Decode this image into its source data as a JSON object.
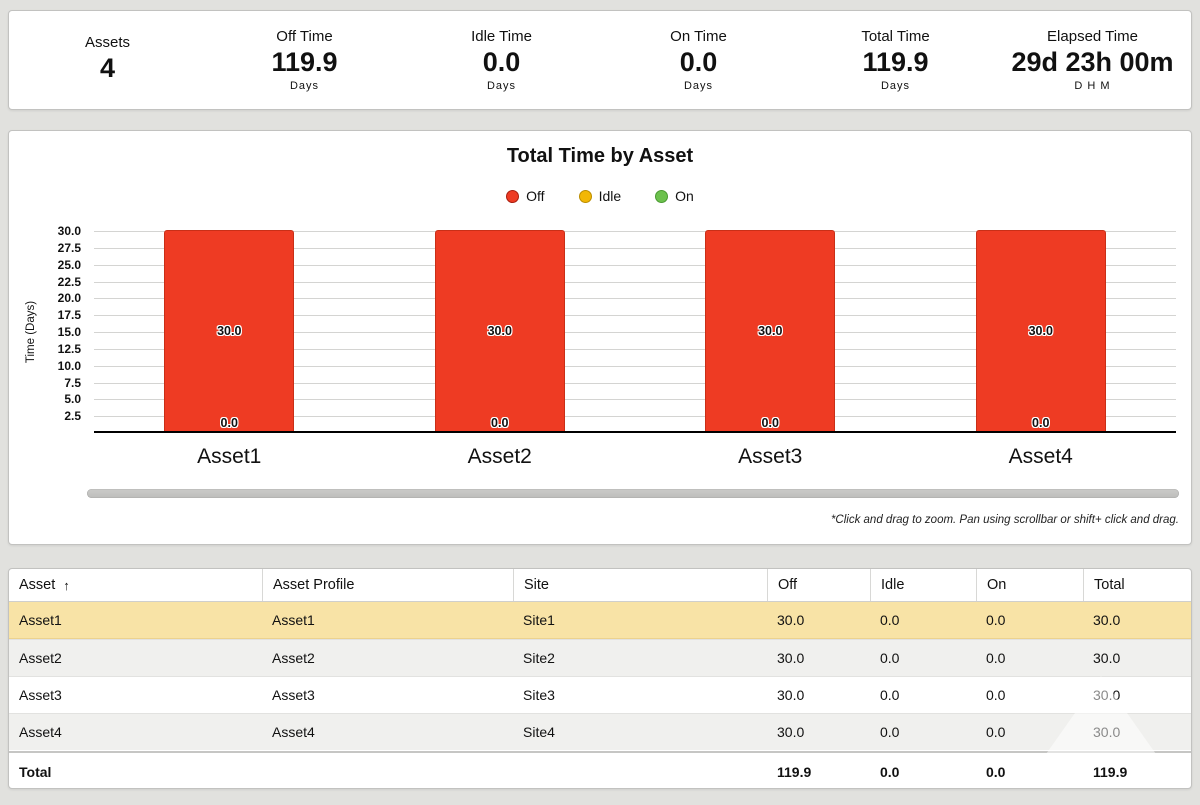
{
  "stats": [
    {
      "label": "Assets",
      "value": "4",
      "unit": ""
    },
    {
      "label": "Off Time",
      "value": "119.9",
      "unit": "Days"
    },
    {
      "label": "Idle Time",
      "value": "0.0",
      "unit": "Days"
    },
    {
      "label": "On Time",
      "value": "0.0",
      "unit": "Days"
    },
    {
      "label": "Total Time",
      "value": "119.9",
      "unit": "Days"
    },
    {
      "label": "Elapsed Time",
      "value": "29d 23h 00m",
      "unit": "D H M"
    }
  ],
  "chart_data": {
    "type": "bar",
    "stacked": true,
    "title": "Total Time by Asset",
    "categories": [
      "Asset1",
      "Asset2",
      "Asset3",
      "Asset4"
    ],
    "series": [
      {
        "name": "Off",
        "color": "#ee3b23",
        "border": "#a81f10",
        "values": [
          30.0,
          30.0,
          30.0,
          30.0
        ]
      },
      {
        "name": "Idle",
        "color": "#f2b705",
        "border": "#bb8d00",
        "values": [
          0.0,
          0.0,
          0.0,
          0.0
        ]
      },
      {
        "name": "On",
        "color": "#6cc14d",
        "border": "#4a9a32",
        "values": [
          0.0,
          0.0,
          0.0,
          0.0
        ]
      }
    ],
    "center_labels": [
      "30.0",
      "30.0",
      "30.0",
      "30.0"
    ],
    "base_labels": [
      "0.0",
      "0.0",
      "0.0",
      "0.0"
    ],
    "ylabel": "Time (Days)",
    "yticks": [
      2.5,
      5.0,
      7.5,
      10.0,
      12.5,
      15.0,
      17.5,
      20.0,
      22.5,
      25.0,
      27.5,
      30.0
    ],
    "ylim": [
      0,
      30
    ],
    "grid": true,
    "legend_position": "top",
    "note": "*Click and drag to zoom. Pan using scrollbar or shift+ click and drag."
  },
  "table": {
    "columns": [
      "Asset",
      "Asset Profile",
      "Site",
      "Off",
      "Idle",
      "On",
      "Total"
    ],
    "sort_column_index": 0,
    "sort_indicator": "↑",
    "rows": [
      [
        "Asset1",
        "Asset1",
        "Site1",
        "30.0",
        "0.0",
        "0.0",
        "30.0"
      ],
      [
        "Asset2",
        "Asset2",
        "Site2",
        "30.0",
        "0.0",
        "0.0",
        "30.0"
      ],
      [
        "Asset3",
        "Asset3",
        "Site3",
        "30.0",
        "0.0",
        "0.0",
        "30.0"
      ],
      [
        "Asset4",
        "Asset4",
        "Site4",
        "30.0",
        "0.0",
        "0.0",
        "30.0"
      ]
    ],
    "total_row": [
      "Total",
      "",
      "",
      "119.9",
      "0.0",
      "0.0",
      "119.9"
    ],
    "highlighted_row_index": 0,
    "highlight_color": "#f8e3a6"
  }
}
